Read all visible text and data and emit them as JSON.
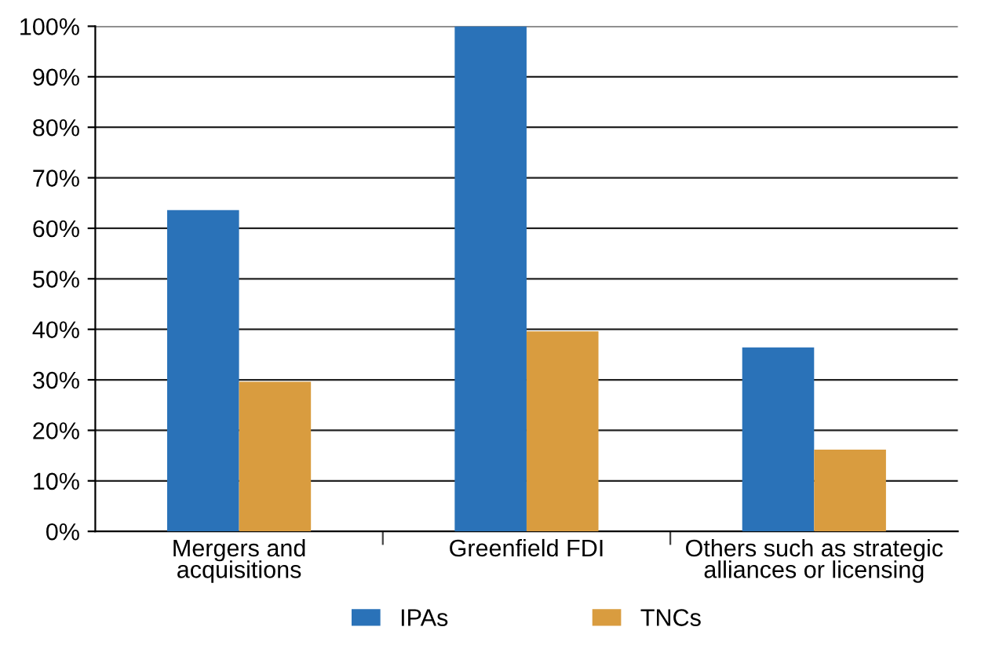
{
  "chart_data": {
    "type": "bar",
    "categories": [
      "Mergers and\nacquisitions",
      "Greenfield FDI",
      "Others such as strategic\nalliances or licensing"
    ],
    "series": [
      {
        "name": "IPAs",
        "color": "#2a72b8",
        "values": [
          63.6,
          100,
          36.4
        ]
      },
      {
        "name": "TNCs",
        "color": "#d99c3f",
        "values": [
          29.6,
          39.6,
          16.2
        ]
      }
    ],
    "ylim": [
      0,
      100
    ],
    "yticks": [
      {
        "value": 0,
        "label": "0%"
      },
      {
        "value": 10,
        "label": "10%"
      },
      {
        "value": 20,
        "label": "20%"
      },
      {
        "value": 30,
        "label": "30%"
      },
      {
        "value": 40,
        "label": "40%"
      },
      {
        "value": 50,
        "label": "50%"
      },
      {
        "value": 60,
        "label": "60%"
      },
      {
        "value": 70,
        "label": "70%"
      },
      {
        "value": 80,
        "label": "80%"
      },
      {
        "value": 90,
        "label": "90%"
      },
      {
        "value": 100,
        "label": "100%"
      }
    ],
    "grid": "y",
    "legend": "bottom"
  }
}
